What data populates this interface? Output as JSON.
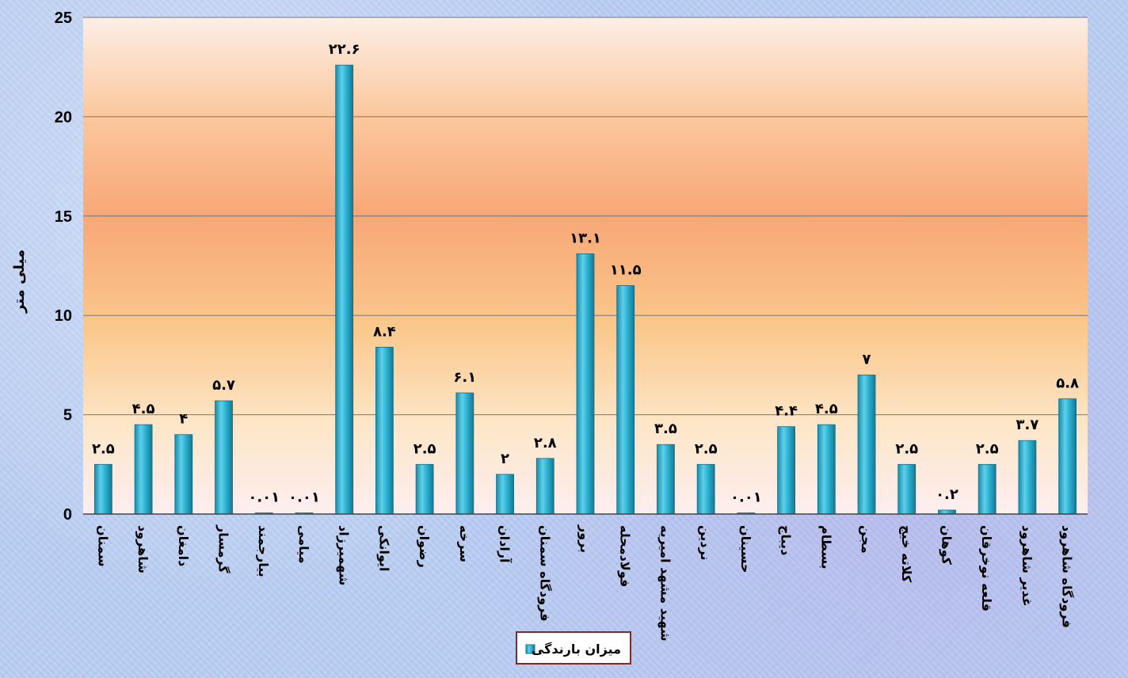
{
  "chart_data": {
    "type": "bar",
    "ylabel": "میلی متر",
    "ylim": [
      0,
      25
    ],
    "yticks": [
      0,
      5,
      10,
      15,
      20,
      25
    ],
    "grid": true,
    "legend_position": "bottom",
    "categories": [
      "سمنان",
      "شاهرود",
      "دامغان",
      "گرمسار",
      "بیارجمند",
      "میامی",
      "شهمیرزاد",
      "ایوانکی",
      "رضوان",
      "سرخه",
      "آرادان",
      "فرودگاه سمنان",
      "برور",
      "فولادمحله",
      "شهید مشهد امیریه",
      "نردین",
      "حسینان",
      "دیباج",
      "بسطام",
      "مجن",
      "کلاته خیج",
      "کوهان",
      "قلعه نوخرقان",
      "غدیر شاهرود",
      "فرودگاه شاهرود"
    ],
    "series": [
      {
        "name": "میزان بارندگی",
        "color": "#2aa7c4",
        "values": [
          2.5,
          4.5,
          4,
          5.7,
          0.01,
          0.01,
          22.6,
          8.4,
          2.5,
          6.1,
          2,
          2.8,
          13.1,
          11.5,
          3.5,
          2.5,
          0.01,
          4.4,
          4.5,
          7,
          2.5,
          0.2,
          2.5,
          3.7,
          5.8
        ],
        "data_labels": [
          "۲.۵",
          "۴.۵",
          "۴",
          "۵.۷",
          "۰.۰۱",
          "۰.۰۱",
          "۲۲.۶",
          "۸.۴",
          "۲.۵",
          "۶.۱",
          "۲",
          "۲.۸",
          "۱۳.۱",
          "۱۱.۵",
          "۳.۵",
          "۲.۵",
          "۰.۰۱",
          "۴.۴",
          "۴.۵",
          "۷",
          "۲.۵",
          "۰.۲",
          "۲.۵",
          "۳.۷",
          "۵.۸"
        ]
      }
    ]
  }
}
